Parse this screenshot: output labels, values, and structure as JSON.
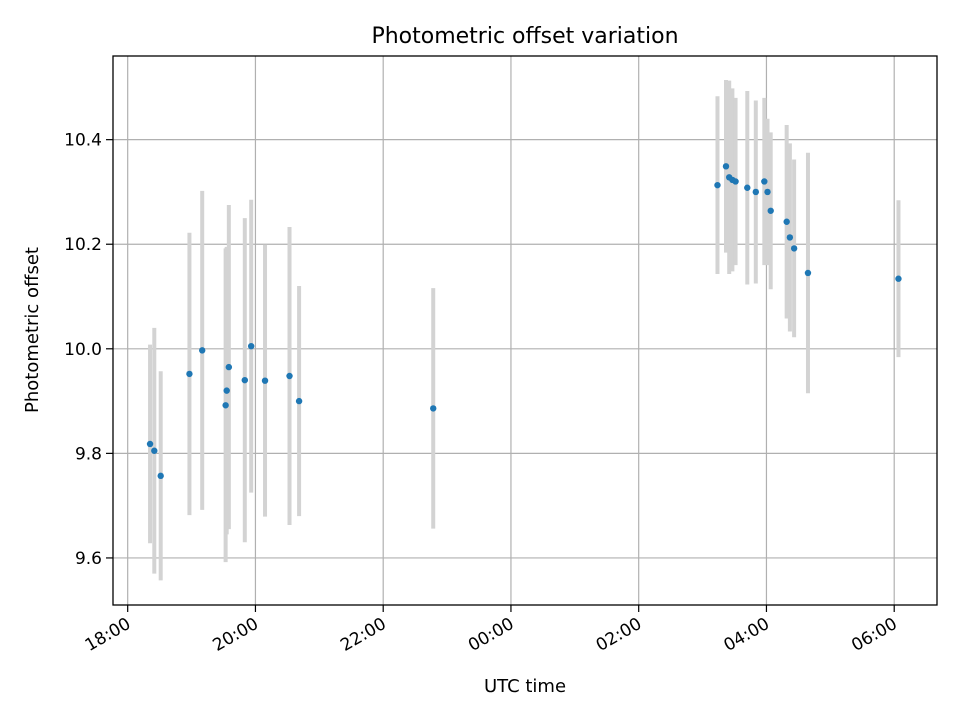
{
  "chart_data": {
    "type": "scatter",
    "title": "Photometric offset variation",
    "xlabel": "UTC time",
    "ylabel": "Photometric offset",
    "x_tick_labels": [
      "18:00",
      "20:00",
      "22:00",
      "00:00",
      "02:00",
      "04:00",
      "06:00"
    ],
    "y_tick_labels": [
      "9.6",
      "9.8",
      "10.0",
      "10.2",
      "10.4"
    ],
    "xlim_hours": [
      17.77,
      30.67
    ],
    "ylim": [
      9.51,
      10.56
    ],
    "grid": true,
    "marker_color": "#1f77b4",
    "errorbar_color": "#d3d3d3",
    "points": [
      {
        "t": "18:21",
        "y": 9.818,
        "err": 0.19
      },
      {
        "t": "18:25",
        "y": 9.805,
        "err": 0.235
      },
      {
        "t": "18:31",
        "y": 9.757,
        "err": 0.2
      },
      {
        "t": "18:58",
        "y": 9.952,
        "err": 0.27
      },
      {
        "t": "19:10",
        "y": 9.997,
        "err": 0.305
      },
      {
        "t": "19:32",
        "y": 9.892,
        "err": 0.3
      },
      {
        "t": "19:33",
        "y": 9.92,
        "err": 0.275
      },
      {
        "t": "19:35",
        "y": 9.965,
        "err": 0.31
      },
      {
        "t": "19:50",
        "y": 9.94,
        "err": 0.31
      },
      {
        "t": "19:56",
        "y": 10.005,
        "err": 0.28
      },
      {
        "t": "20:09",
        "y": 9.939,
        "err": 0.26
      },
      {
        "t": "20:32",
        "y": 9.948,
        "err": 0.285
      },
      {
        "t": "20:41",
        "y": 9.9,
        "err": 0.22
      },
      {
        "t": "22:47",
        "y": 9.886,
        "err": 0.23
      },
      {
        "t": "03:14",
        "y": 10.313,
        "err": 0.17
      },
      {
        "t": "03:22",
        "y": 10.349,
        "err": 0.165
      },
      {
        "t": "03:25",
        "y": 10.328,
        "err": 0.185
      },
      {
        "t": "03:28",
        "y": 10.323,
        "err": 0.175
      },
      {
        "t": "03:31",
        "y": 10.32,
        "err": 0.16
      },
      {
        "t": "03:42",
        "y": 10.308,
        "err": 0.185
      },
      {
        "t": "03:50",
        "y": 10.3,
        "err": 0.175
      },
      {
        "t": "03:58",
        "y": 10.32,
        "err": 0.16
      },
      {
        "t": "04:01",
        "y": 10.3,
        "err": 0.14
      },
      {
        "t": "04:04",
        "y": 10.264,
        "err": 0.15
      },
      {
        "t": "04:19",
        "y": 10.243,
        "err": 0.185
      },
      {
        "t": "04:22",
        "y": 10.213,
        "err": 0.18
      },
      {
        "t": "04:26",
        "y": 10.192,
        "err": 0.17
      },
      {
        "t": "04:39",
        "y": 10.145,
        "err": 0.23
      },
      {
        "t": "06:04",
        "y": 10.134,
        "err": 0.15
      }
    ]
  }
}
